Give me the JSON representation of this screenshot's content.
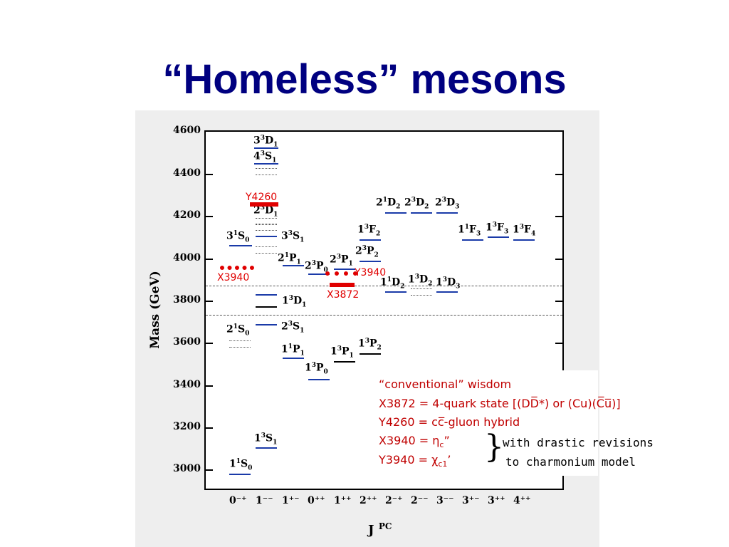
{
  "slide": {
    "title": "“Homeless” mesons"
  },
  "axis": {
    "ylabel": "Mass (GeV)",
    "yticks": [
      "4600",
      "4400",
      "4200",
      "4000",
      "3800",
      "3600",
      "3400",
      "3200",
      "3000"
    ],
    "xlabel_main": "J",
    "xlabel_sup": "PC",
    "xticks": [
      "0⁻⁺",
      "1⁻⁻",
      "1⁺⁻",
      "0⁺⁺",
      "1⁺⁺",
      "2⁺⁺",
      "2⁻⁺",
      "2⁻⁻",
      "3⁻⁻",
      "3⁺⁻",
      "3⁺⁺",
      "4⁺⁺"
    ]
  },
  "states": {
    "s33d1": {
      "n": "3",
      "s": "3",
      "l": "D",
      "j": "1"
    },
    "s43s1": {
      "n": "4",
      "s": "3",
      "l": "S",
      "j": "1"
    },
    "s23d1": {
      "n": "2",
      "s": "3",
      "l": "D",
      "j": "1"
    },
    "s31s0": {
      "n": "3",
      "s": "1",
      "l": "S",
      "j": "0"
    },
    "s33s1": {
      "n": "3",
      "s": "3",
      "l": "S",
      "j": "1"
    },
    "s21p1": {
      "n": "2",
      "s": "1",
      "l": "P",
      "j": "1"
    },
    "s23p0": {
      "n": "2",
      "s": "3",
      "l": "P",
      "j": "0"
    },
    "s23p1": {
      "n": "2",
      "s": "3",
      "l": "P",
      "j": "1"
    },
    "s23p2": {
      "n": "2",
      "s": "3",
      "l": "P",
      "j": "2"
    },
    "s21d2": {
      "n": "2",
      "s": "1",
      "l": "D",
      "j": "2"
    },
    "s23d2": {
      "n": "2",
      "s": "3",
      "l": "D",
      "j": "2"
    },
    "s23d3": {
      "n": "2",
      "s": "3",
      "l": "D",
      "j": "3"
    },
    "s13f2": {
      "n": "1",
      "s": "3",
      "l": "F",
      "j": "2"
    },
    "s11f3": {
      "n": "1",
      "s": "1",
      "l": "F",
      "j": "3"
    },
    "s13f3": {
      "n": "1",
      "s": "3",
      "l": "F",
      "j": "3"
    },
    "s13f4": {
      "n": "1",
      "s": "3",
      "l": "F",
      "j": "4"
    },
    "s11d2": {
      "n": "1",
      "s": "1",
      "l": "D",
      "j": "2"
    },
    "s13d2": {
      "n": "1",
      "s": "3",
      "l": "D",
      "j": "2"
    },
    "s13d3": {
      "n": "1",
      "s": "3",
      "l": "D",
      "j": "3"
    },
    "s13d1": {
      "n": "1",
      "s": "3",
      "l": "D",
      "j": "1"
    },
    "s21s0": {
      "n": "2",
      "s": "1",
      "l": "S",
      "j": "0"
    },
    "s23s1": {
      "n": "2",
      "s": "3",
      "l": "S",
      "j": "1"
    },
    "s11p1": {
      "n": "1",
      "s": "1",
      "l": "P",
      "j": "1"
    },
    "s13p1": {
      "n": "1",
      "s": "3",
      "l": "P",
      "j": "1"
    },
    "s13p2": {
      "n": "1",
      "s": "3",
      "l": "P",
      "j": "2"
    },
    "s13p0": {
      "n": "1",
      "s": "3",
      "l": "P",
      "j": "0"
    },
    "s13s1": {
      "n": "1",
      "s": "3",
      "l": "S",
      "j": "1"
    },
    "s11s0": {
      "n": "1",
      "s": "1",
      "l": "S",
      "j": "0"
    }
  },
  "exotics": {
    "y4260": "Y4260",
    "x3940": "X3940",
    "y3940": "Y3940",
    "x3872": "X3872"
  },
  "note": {
    "line1": "“conventional” wisdom",
    "line2": "X3872 = 4-quark state [(DD̅*) or (Cu)(C̅u̅)]",
    "line3": "Y4260 = cc̅-gluon hybrid",
    "line4_pre": "X3940 = ",
    "line4_sym": "η",
    "line4_sub": "c",
    "line4_post": "”",
    "line5_pre": "Y3940 = ",
    "line5_sym": "χ",
    "line5_sub": "c1",
    "line5_post": "’",
    "aside1": "with drastic revisions",
    "aside2": "to charmonium model"
  },
  "colors": {
    "title": "#000080",
    "exotic": "#e00000",
    "note_text": "#c00000",
    "level": "#1a3aa8"
  }
}
